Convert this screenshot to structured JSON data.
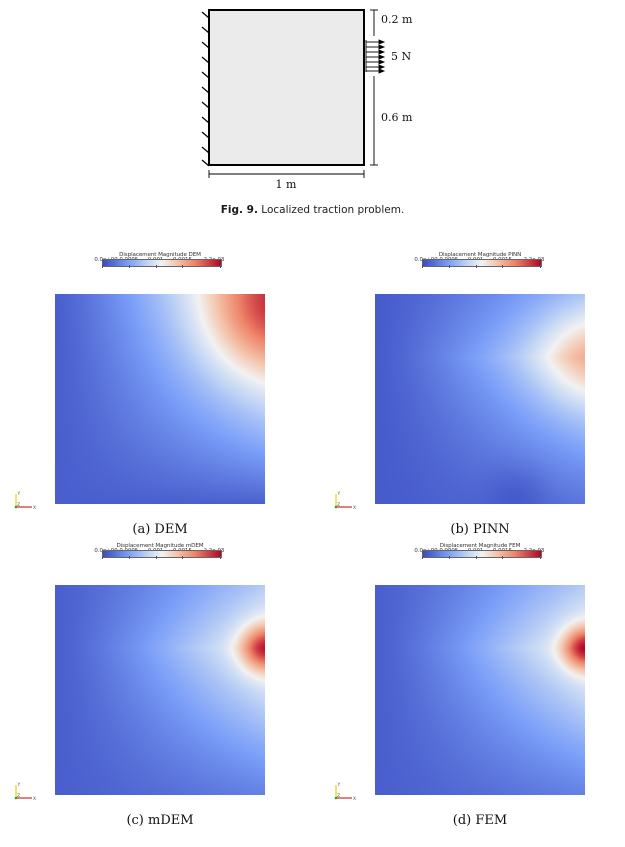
{
  "schematic": {
    "dims": {
      "top": "0.2 m",
      "load": "5 N",
      "bottom": "0.6 m",
      "width": "1 m"
    }
  },
  "figure_caption": {
    "label": "Fig. 9.",
    "text": "Localized traction problem."
  },
  "colorbar": {
    "ticks": [
      "0.0e+00",
      "0.0005",
      "0.001",
      "0.0015",
      "2.2e-03"
    ],
    "tick_values": [
      0,
      0.0005,
      0.001,
      0.0015,
      0.0022
    ],
    "range": [
      0,
      0.0022
    ],
    "colors": [
      "#3b4cc0",
      "#f2f2f2",
      "#b40426"
    ]
  },
  "axes_triad": {
    "y": "Y",
    "z": "Z",
    "x": "X",
    "colors": {
      "x": "#d62728",
      "y": "#e8d600",
      "z": "#2ca02c"
    }
  },
  "panels": [
    {
      "id": "dem",
      "title": "Displacement Magnitude DEM",
      "caption": "(a) DEM"
    },
    {
      "id": "pinn",
      "title": "Displacement Magnitude PINN",
      "caption": "(b) PINN"
    },
    {
      "id": "mdem",
      "title": "Displacement Magnitude mDEM",
      "caption": "(c) mDEM"
    },
    {
      "id": "fem",
      "title": "Displacement Magnitude FEM",
      "caption": "(d) FEM"
    }
  ]
}
